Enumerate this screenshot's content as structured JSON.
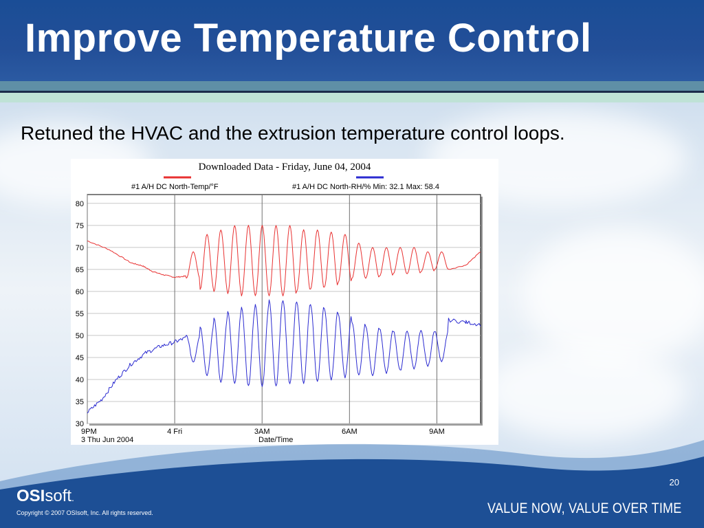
{
  "slide": {
    "title": "Improve Temperature Control",
    "subtitle": "Retuned the HVAC and the extrusion temperature control loops.",
    "page_number": "20"
  },
  "footer": {
    "logo_bold": "OSI",
    "logo_light": "soft",
    "logo_mark": ".",
    "copyright": "Copyright © 2007 OSIsoft, Inc. All rights reserved.",
    "tagline": "VALUE NOW, VALUE OVER TIME"
  },
  "colors": {
    "header_blue": "#234f98",
    "temp_series": "#e83030",
    "rh_series": "#2a2ad0",
    "footer_blue": "#1d4f95"
  },
  "chart_data": {
    "type": "line",
    "title": "Downloaded Data - Friday, June 04, 2004",
    "xlabel": "Date/Time",
    "ylabel": "",
    "ylim": [
      30,
      82
    ],
    "yticks": [
      30,
      35,
      40,
      45,
      50,
      55,
      60,
      65,
      70,
      75,
      80
    ],
    "xlim": [
      0,
      13.5
    ],
    "xticks": [
      {
        "x": 0,
        "label": "9PM",
        "sublabel": "3 Thu Jun 2004"
      },
      {
        "x": 3,
        "label": "4 Fri",
        "sublabel": ""
      },
      {
        "x": 6,
        "label": "3AM",
        "sublabel": ""
      },
      {
        "x": 9,
        "label": "6AM",
        "sublabel": ""
      },
      {
        "x": 12,
        "label": "9AM",
        "sublabel": ""
      }
    ],
    "grid": true,
    "legend": "top",
    "series": [
      {
        "name": "#1 A/H DC North-Temp/°F",
        "color": "#e83030",
        "x": [
          0,
          0.75,
          1.5,
          1.9,
          2.25,
          2.6,
          3.0,
          3.4
        ],
        "y": [
          71.5,
          69.5,
          66.5,
          65.8,
          64.5,
          63.8,
          63.2,
          63.5
        ],
        "oscillation": {
          "start_x": 3.4,
          "end_x": 12.4,
          "peaks": [
            69,
            73,
            74,
            75,
            75,
            75,
            75,
            75,
            74,
            74,
            73.5,
            73,
            71,
            70,
            70,
            70,
            70,
            69,
            69
          ],
          "troughs": [
            63,
            60.5,
            60,
            59.5,
            59,
            59,
            59,
            59,
            60,
            60.5,
            61,
            62,
            63,
            63,
            63.5,
            64,
            64,
            64.5,
            65
          ]
        },
        "tail": {
          "x": [
            12.4,
            13.0,
            13.5
          ],
          "y": [
            65,
            66,
            69
          ]
        }
      },
      {
        "name": "#1 A/H DC North-RH/% Min: 32.1 Max: 58.4",
        "color": "#2a2ad0",
        "x": [
          0,
          0.5,
          1.0,
          1.5,
          2.0,
          2.5,
          3.0,
          3.4
        ],
        "y": [
          32.5,
          35.5,
          40.0,
          43.5,
          46.0,
          47.5,
          48.5,
          49.5
        ],
        "oscillation": {
          "start_x": 3.4,
          "end_x": 12.4,
          "peaks": [
            50,
            52,
            54,
            55.5,
            56.5,
            57,
            58,
            58,
            57.5,
            57,
            56,
            55,
            53,
            52,
            51.5,
            51,
            51,
            51,
            51
          ],
          "troughs": [
            44,
            41,
            39.5,
            39,
            38.5,
            38.5,
            38.5,
            39,
            39,
            39.5,
            40,
            40.5,
            41,
            41,
            41.5,
            42,
            42.5,
            43,
            44
          ]
        },
        "tail": {
          "x": [
            12.4,
            13.0,
            13.5
          ],
          "y": [
            53.5,
            53,
            52.5
          ]
        }
      }
    ]
  }
}
